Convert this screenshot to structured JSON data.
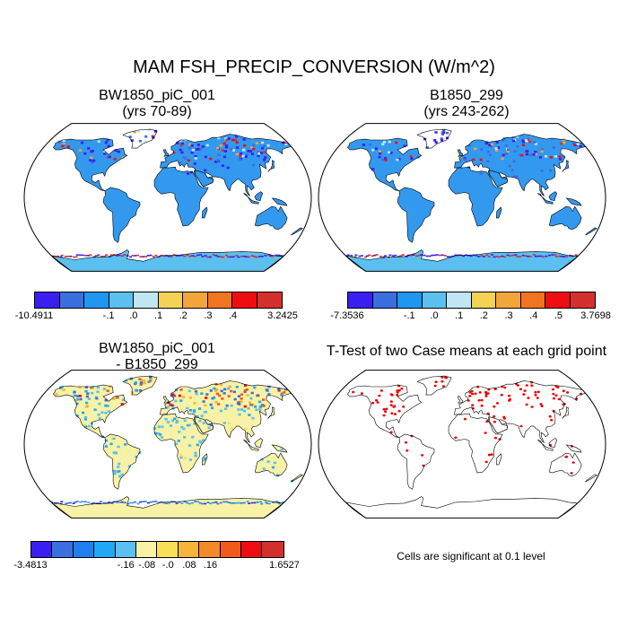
{
  "title": "MAM FSH_PRECIP_CONVERSION (W/m^2)",
  "panels": {
    "p1": {
      "title1": "BW1850_piC_001",
      "title2": "(yrs 70-89)"
    },
    "p2": {
      "title1": "B1850_299",
      "title2": "(yrs 243-262)"
    },
    "p3": {
      "title1": "BW1850_piC_001",
      "title2": "- B1850_299"
    },
    "p4": {
      "title1": "T-Test of two Case means at each grid point",
      "note": "Cells are significant at 0.1 level"
    }
  },
  "colorbars": {
    "cb1": {
      "colors": [
        "#3a1ff0",
        "#3b6ee0",
        "#1f96f0",
        "#5bc0ef",
        "#bfe6f2",
        "#f3d256",
        "#f2a53a",
        "#f27420",
        "#ee0d10",
        "#d4302e"
      ],
      "labels": [
        "-10.4911",
        "-.1",
        ".0",
        ".1",
        ".2",
        ".3",
        ".4",
        "3.2425"
      ]
    },
    "cb2": {
      "colors": [
        "#3a1ff0",
        "#3b6ee0",
        "#1f96f0",
        "#5bc0ef",
        "#bfe6f2",
        "#f3d256",
        "#f2a53a",
        "#f27420",
        "#ee0d10",
        "#d4302e"
      ],
      "labels": [
        "-7.3536",
        "-.1",
        ".0",
        ".1",
        ".2",
        ".3",
        ".4",
        ".5",
        "3.7698"
      ]
    },
    "cb3": {
      "colors": [
        "#3a1ff0",
        "#3b6ee0",
        "#1f7ff0",
        "#1fa8f5",
        "#5bc0ef",
        "#f7f2a6",
        "#f7df58",
        "#f7b43a",
        "#f28a2a",
        "#f25a1c",
        "#ee0d10",
        "#d4302e"
      ],
      "labels": [
        "-3.4813",
        "-.16",
        "-.08",
        "-.0",
        ".08",
        ".16",
        "1.6527"
      ]
    }
  },
  "fills": {
    "ocean": "#ffffff",
    "land_p12": "#3399ee",
    "land_p3": "#f7f2a6",
    "antarctic_p12": "#5bc0ef",
    "sig_dots": "#ee0000"
  }
}
